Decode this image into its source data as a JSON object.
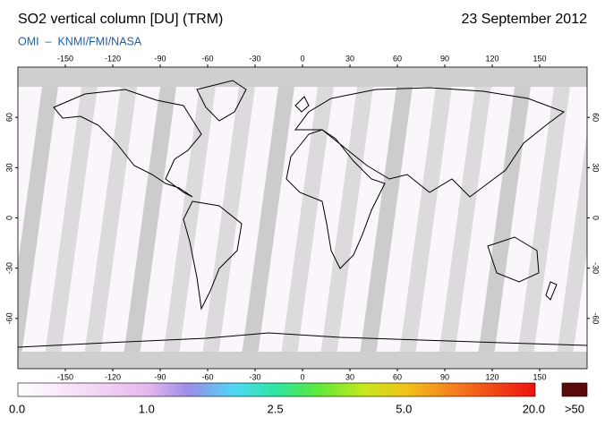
{
  "header": {
    "title": "SO2 vertical column [DU] (TRM)",
    "date": "23 September 2012",
    "source": "OMI  –  KNMI/FMI/NASA"
  },
  "map": {
    "lon_ticks": [
      -150,
      -120,
      -90,
      -60,
      -30,
      0,
      30,
      60,
      90,
      120,
      150
    ],
    "lat_ticks": [
      60,
      30,
      0,
      -30,
      -60
    ]
  },
  "colorbar": {
    "labels": [
      "0.0",
      "1.0",
      "2.5",
      "5.0",
      "20.0"
    ],
    "overflow_label": ">50"
  }
}
